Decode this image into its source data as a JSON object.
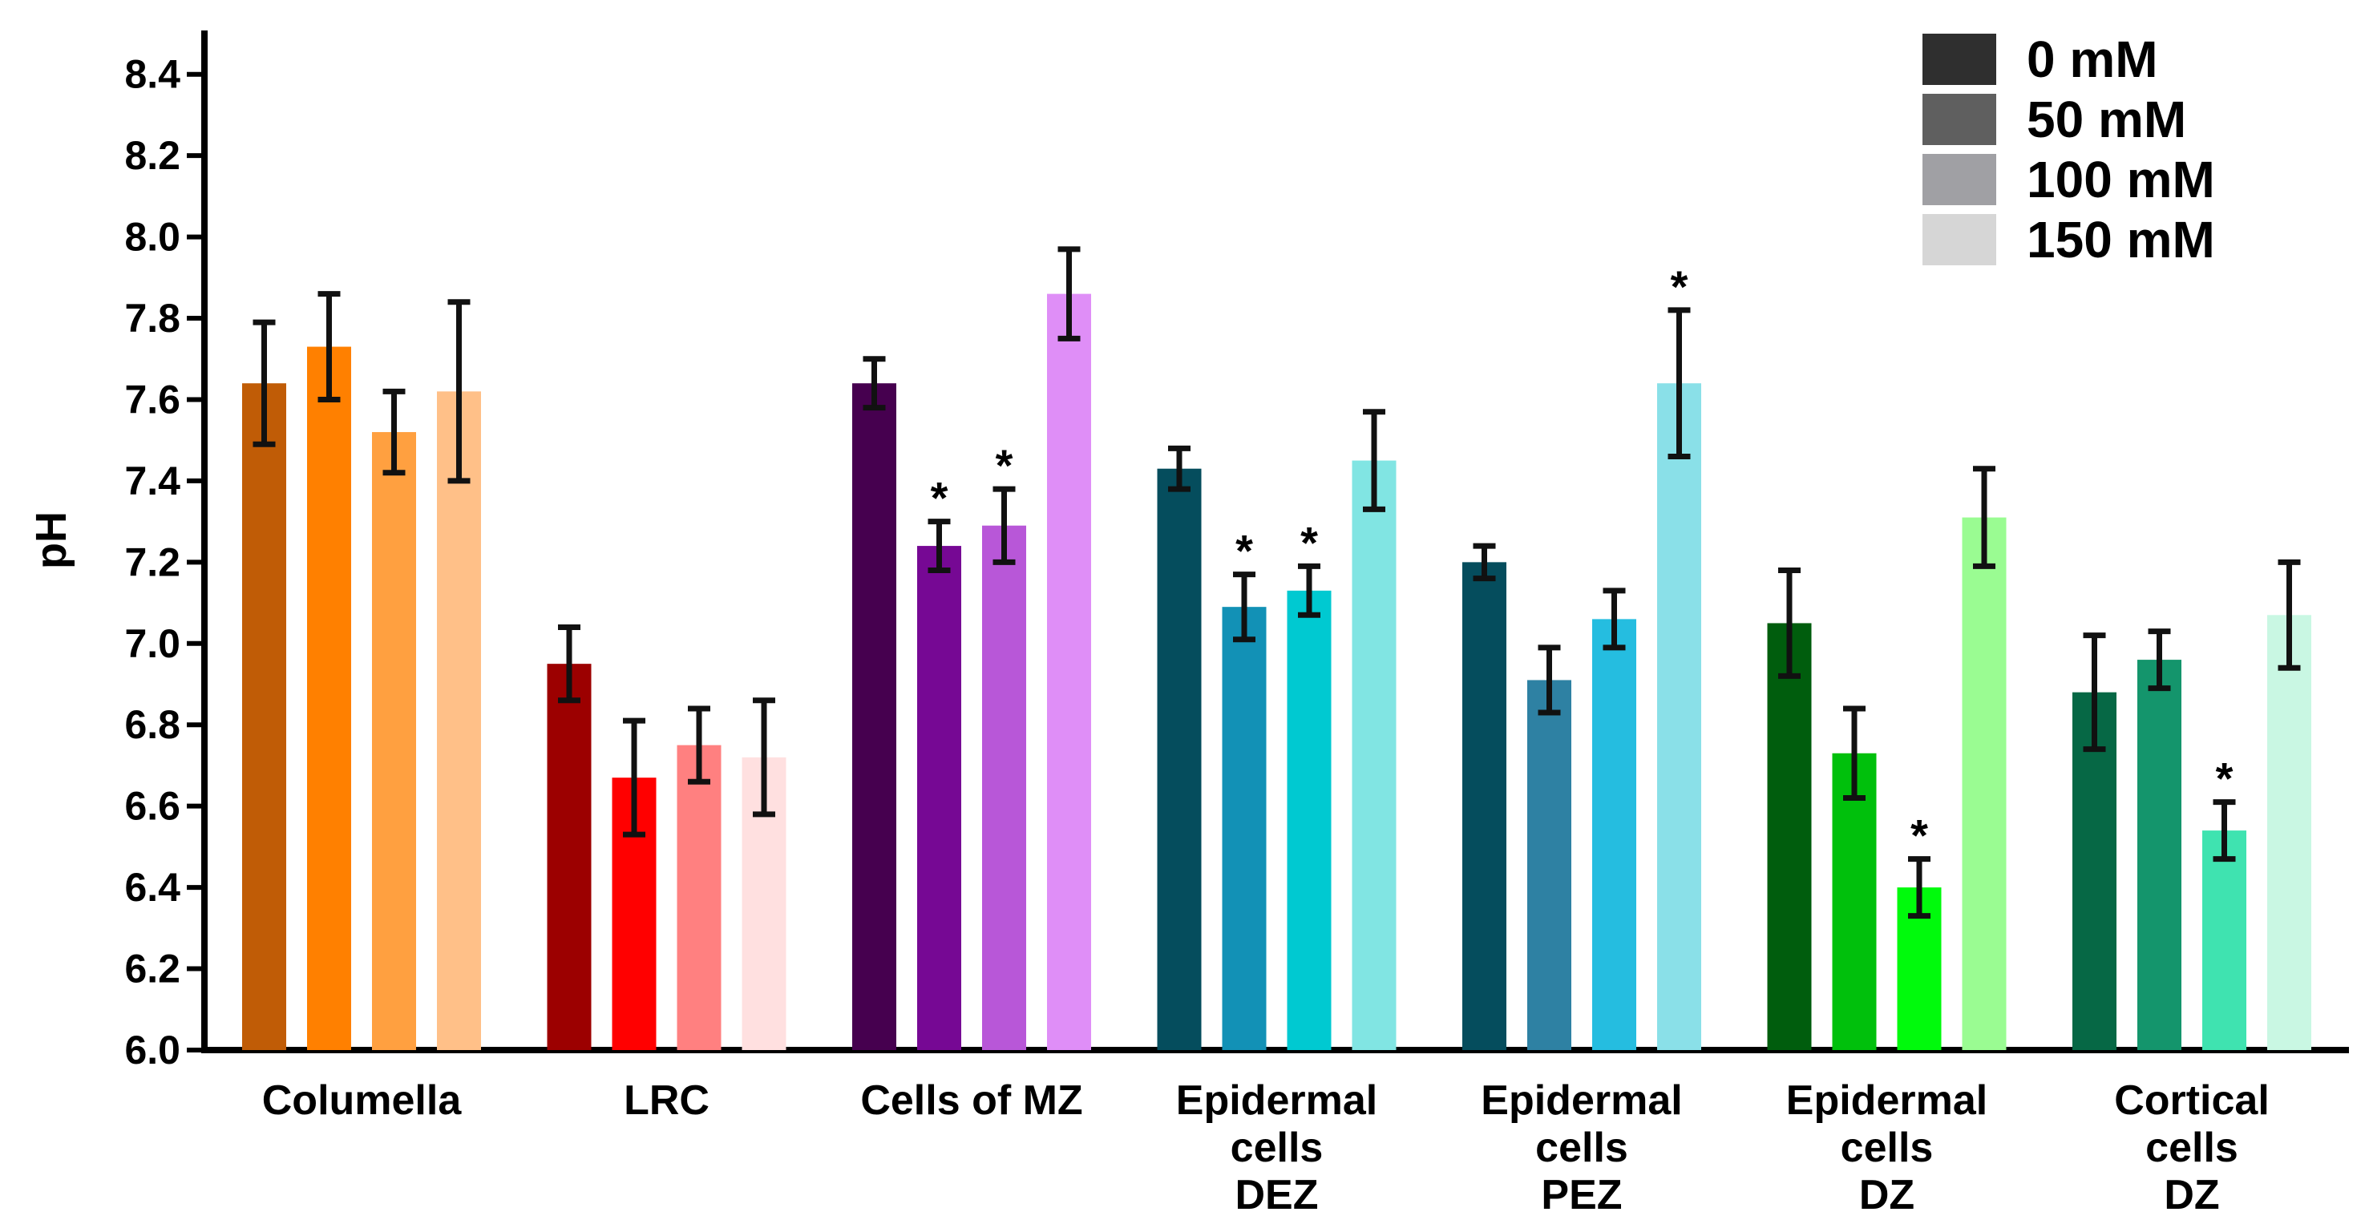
{
  "chart_data": {
    "type": "bar",
    "title": "",
    "xlabel": "",
    "ylabel": "pH",
    "ylim": [
      6.0,
      8.5
    ],
    "yticks": [
      "6.0",
      "6.2",
      "6.4",
      "6.6",
      "6.8",
      "7.0",
      "7.2",
      "7.4",
      "7.6",
      "7.8",
      "8.0",
      "8.2",
      "8.4"
    ],
    "legend": {
      "position": "top-right",
      "entries": [
        {
          "label": "0 mM",
          "color": "#2f2f2f"
        },
        {
          "label": "50 mM",
          "color": "#5f5f5f"
        },
        {
          "label": "100 mM",
          "color": "#a0a0a4"
        },
        {
          "label": "150 mM",
          "color": "#d6d6d6"
        }
      ]
    },
    "significance_marker": "*",
    "groups": [
      {
        "label": [
          "Columella"
        ],
        "colors": [
          "#c05c06",
          "#ff8000",
          "#ffa040",
          "#ffc088"
        ],
        "values": [
          7.64,
          7.73,
          7.52,
          7.62
        ],
        "errors": [
          0.15,
          0.13,
          0.1,
          0.22
        ],
        "sig": [
          false,
          false,
          false,
          false
        ]
      },
      {
        "label": [
          "LRC"
        ],
        "colors": [
          "#9c0000",
          "#ff0000",
          "#ff8080",
          "#ffe0e0"
        ],
        "values": [
          6.95,
          6.67,
          6.75,
          6.72
        ],
        "errors": [
          0.09,
          0.14,
          0.09,
          0.14
        ],
        "sig": [
          false,
          false,
          false,
          false
        ]
      },
      {
        "label": [
          "Cells of MZ"
        ],
        "colors": [
          "#46004f",
          "#760894",
          "#b857d8",
          "#df8ef7"
        ],
        "values": [
          7.64,
          7.24,
          7.29,
          7.86
        ],
        "errors": [
          0.06,
          0.06,
          0.09,
          0.11
        ],
        "sig": [
          false,
          true,
          true,
          false
        ]
      },
      {
        "label": [
          "Epidermal",
          "cells",
          "DEZ"
        ],
        "colors": [
          "#054d5d",
          "#1291b6",
          "#00c9d1",
          "#81e5e3"
        ],
        "values": [
          7.43,
          7.09,
          7.13,
          7.45
        ],
        "errors": [
          0.05,
          0.08,
          0.06,
          0.12
        ],
        "sig": [
          false,
          true,
          true,
          false
        ]
      },
      {
        "label": [
          "Epidermal",
          "cells",
          "PEZ"
        ],
        "colors": [
          "#054d5d",
          "#2e81a3",
          "#25bde0",
          "#8ae0e8"
        ],
        "values": [
          7.2,
          6.91,
          7.06,
          7.64
        ],
        "errors": [
          0.04,
          0.08,
          0.07,
          0.18
        ],
        "sig": [
          false,
          false,
          false,
          true
        ]
      },
      {
        "label": [
          "Epidermal",
          "cells",
          "DZ"
        ],
        "colors": [
          "#005d0d",
          "#00c00c",
          "#00fa0c",
          "#9afc92"
        ],
        "values": [
          7.05,
          6.73,
          6.4,
          7.31
        ],
        "errors": [
          0.13,
          0.11,
          0.07,
          0.12
        ],
        "sig": [
          false,
          false,
          true,
          false
        ]
      },
      {
        "label": [
          "Cortical",
          "cells",
          "DZ"
        ],
        "colors": [
          "#066845",
          "#14956c",
          "#3fe3b0",
          "#c9f7e3"
        ],
        "values": [
          6.88,
          6.96,
          6.54,
          7.07
        ],
        "errors": [
          0.14,
          0.07,
          0.07,
          0.13
        ],
        "sig": [
          false,
          false,
          true,
          false
        ]
      }
    ]
  }
}
